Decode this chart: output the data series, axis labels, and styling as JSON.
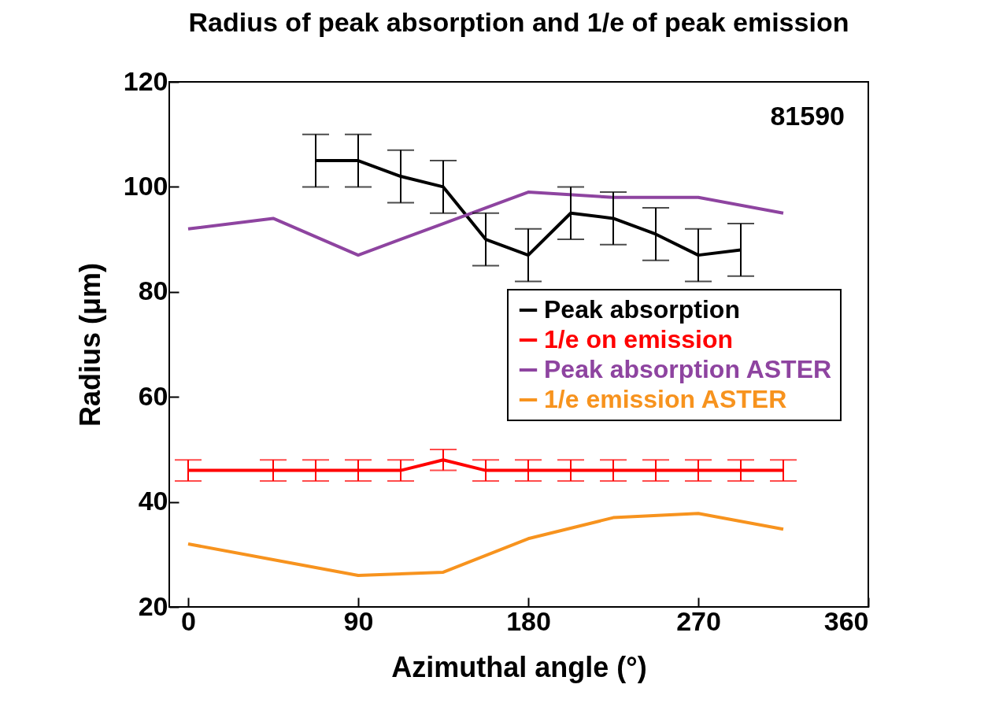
{
  "chart_data": {
    "type": "line",
    "title": "Radius of peak absorption and 1/e of peak emission",
    "xlabel": "Azimuthal angle (°)",
    "ylabel": "Radius (μm)",
    "annotations": [
      "81590"
    ],
    "xlim": [
      -10,
      360
    ],
    "xticks": [
      0,
      90,
      180,
      270,
      360
    ],
    "ylim": [
      20,
      120
    ],
    "yticks": [
      20,
      40,
      60,
      80,
      100,
      120
    ],
    "grid": false,
    "legend": "right",
    "marker": "none",
    "line_style": "solid",
    "series": [
      {
        "name": "Peak absorption",
        "color": "#000000",
        "x": [
          67.5,
          90,
          112.5,
          135,
          157.5,
          180,
          202.5,
          225,
          247.5,
          270,
          292.5
        ],
        "values": [
          105,
          105,
          102,
          100,
          90,
          87,
          95,
          94,
          91,
          87,
          88
        ],
        "errors": [
          5,
          5,
          5,
          5,
          5,
          5,
          5,
          5,
          5,
          5,
          5
        ]
      },
      {
        "name": "1/e on emission",
        "color": "#ff0000",
        "x": [
          0,
          45,
          67.5,
          90,
          112.5,
          135,
          157.5,
          180,
          202.5,
          225,
          247.5,
          270,
          292.5,
          315
        ],
        "values": [
          46,
          46,
          46,
          46,
          46,
          48,
          46,
          46,
          46,
          46,
          46,
          46,
          46,
          46
        ],
        "errors": [
          2,
          2,
          2,
          2,
          2,
          2,
          2,
          2,
          2,
          2,
          2,
          2,
          2,
          2
        ]
      },
      {
        "name": "Peak absorption ASTER",
        "color": "#8e44a0",
        "x": [
          0,
          45,
          90,
          135,
          180,
          225,
          270,
          315
        ],
        "values": [
          92,
          94,
          87,
          93,
          99,
          98,
          98,
          95
        ]
      },
      {
        "name": "1/e emission ASTER",
        "color": "#f7931e",
        "x": [
          0,
          45,
          90,
          135,
          180,
          225,
          270,
          315
        ],
        "values": [
          32,
          29,
          26,
          26.6,
          33,
          37,
          37.8,
          34.8
        ]
      }
    ]
  }
}
